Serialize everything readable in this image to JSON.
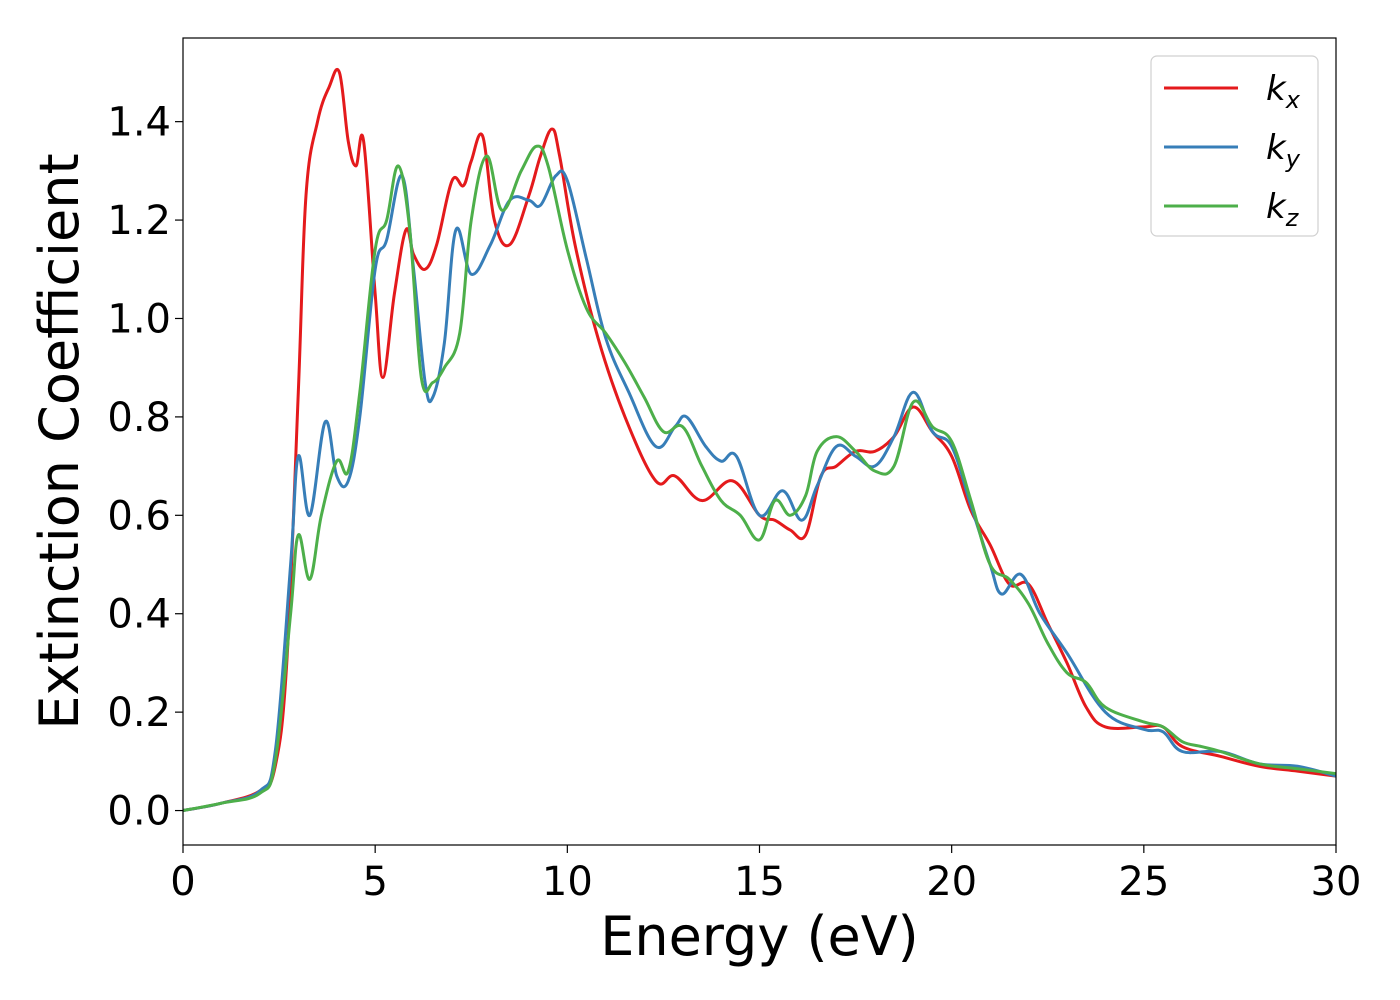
{
  "chart_data": {
    "type": "line",
    "title": "",
    "xlabel": "Energy (eV)",
    "ylabel": "Extinction Coefficient",
    "xlim": [
      0,
      30
    ],
    "ylim": [
      -0.07,
      1.57
    ],
    "xticks": [
      0,
      5,
      10,
      15,
      20,
      25,
      30
    ],
    "xtick_labels": [
      "0",
      "5",
      "10",
      "15",
      "20",
      "25",
      "30"
    ],
    "yticks": [
      0.0,
      0.2,
      0.4,
      0.6,
      0.8,
      1.0,
      1.2,
      1.4
    ],
    "ytick_labels": [
      "0.0",
      "0.2",
      "0.4",
      "0.6",
      "0.8",
      "1.0",
      "1.2",
      "1.4"
    ],
    "grid": false,
    "legend_position": "top-right",
    "series": [
      {
        "name": "k",
        "subscript": "x",
        "color": "#e41a1c",
        "x": [
          0,
          1,
          2,
          2.4,
          2.7,
          3.0,
          3.2,
          3.5,
          3.8,
          4.07,
          4.3,
          4.5,
          4.7,
          5.0,
          5.2,
          5.5,
          5.8,
          6.0,
          6.3,
          6.6,
          7.0,
          7.3,
          7.5,
          7.8,
          8.1,
          8.5,
          9.0,
          9.3,
          9.6,
          9.8,
          10.2,
          10.8,
          11.5,
          12.3,
          12.8,
          13.5,
          14.3,
          15.0,
          15.4,
          15.8,
          16.2,
          16.6,
          17.0,
          17.5,
          18.0,
          18.5,
          19.0,
          19.5,
          20.0,
          20.5,
          21.0,
          21.5,
          22.0,
          22.5,
          23.0,
          23.5,
          24.0,
          25.0,
          25.5,
          26.0,
          27.0,
          28.0,
          29.0,
          30.0
        ],
        "y": [
          0.0,
          0.015,
          0.04,
          0.09,
          0.3,
          0.85,
          1.25,
          1.4,
          1.47,
          1.5,
          1.36,
          1.31,
          1.36,
          1.05,
          0.88,
          1.05,
          1.18,
          1.13,
          1.1,
          1.15,
          1.28,
          1.27,
          1.32,
          1.37,
          1.2,
          1.15,
          1.25,
          1.33,
          1.385,
          1.33,
          1.15,
          0.96,
          0.8,
          0.67,
          0.68,
          0.63,
          0.67,
          0.6,
          0.59,
          0.57,
          0.56,
          0.68,
          0.7,
          0.73,
          0.73,
          0.76,
          0.82,
          0.77,
          0.72,
          0.61,
          0.54,
          0.46,
          0.46,
          0.38,
          0.3,
          0.21,
          0.17,
          0.17,
          0.17,
          0.13,
          0.11,
          0.09,
          0.08,
          0.07
        ]
      },
      {
        "name": "k",
        "subscript": "y",
        "color": "#377eb8",
        "x": [
          0,
          1,
          2,
          2.4,
          2.8,
          3.0,
          3.3,
          3.7,
          4.0,
          4.3,
          4.6,
          5.0,
          5.3,
          5.7,
          6.0,
          6.3,
          6.5,
          6.8,
          7.1,
          7.5,
          8.0,
          8.5,
          9.0,
          9.3,
          9.7,
          10.0,
          10.5,
          11.0,
          11.6,
          12.3,
          12.8,
          13.1,
          13.6,
          14.0,
          14.4,
          15.0,
          15.6,
          16.1,
          16.5,
          17.0,
          17.5,
          18.0,
          18.5,
          19.0,
          19.5,
          20.0,
          20.5,
          21.0,
          21.3,
          21.8,
          22.3,
          23.0,
          24.0,
          25.0,
          25.5,
          26.0,
          27.0,
          28.0,
          29.0,
          30.0
        ],
        "y": [
          0.0,
          0.015,
          0.04,
          0.12,
          0.5,
          0.72,
          0.6,
          0.79,
          0.68,
          0.67,
          0.8,
          1.1,
          1.16,
          1.29,
          1.1,
          0.87,
          0.84,
          0.95,
          1.18,
          1.09,
          1.15,
          1.24,
          1.24,
          1.23,
          1.29,
          1.28,
          1.12,
          0.96,
          0.85,
          0.74,
          0.78,
          0.8,
          0.74,
          0.71,
          0.72,
          0.6,
          0.65,
          0.59,
          0.66,
          0.74,
          0.72,
          0.7,
          0.76,
          0.85,
          0.77,
          0.74,
          0.62,
          0.5,
          0.44,
          0.48,
          0.4,
          0.32,
          0.2,
          0.165,
          0.16,
          0.12,
          0.12,
          0.095,
          0.09,
          0.07
        ]
      },
      {
        "name": "k",
        "subscript": "z",
        "color": "#4daf4a",
        "x": [
          0,
          1,
          2,
          2.4,
          2.8,
          3.0,
          3.3,
          3.6,
          4.0,
          4.3,
          4.6,
          5.0,
          5.3,
          5.6,
          5.9,
          6.2,
          6.5,
          6.8,
          7.2,
          7.5,
          7.9,
          8.3,
          8.8,
          9.2,
          9.5,
          10.0,
          10.5,
          11.0,
          11.5,
          12.0,
          12.5,
          13.0,
          13.5,
          14.0,
          14.5,
          15.0,
          15.4,
          15.8,
          16.2,
          16.5,
          17.0,
          17.5,
          18.0,
          18.5,
          19.0,
          19.5,
          20.0,
          20.5,
          21.0,
          21.5,
          22.0,
          22.5,
          23.0,
          23.5,
          24.0,
          25.0,
          25.5,
          26.0,
          26.5,
          27.0,
          28.0,
          29.0,
          30.0
        ],
        "y": [
          0.0,
          0.015,
          0.035,
          0.1,
          0.4,
          0.56,
          0.47,
          0.6,
          0.71,
          0.69,
          0.85,
          1.14,
          1.2,
          1.31,
          1.18,
          0.88,
          0.87,
          0.9,
          0.97,
          1.2,
          1.33,
          1.22,
          1.3,
          1.35,
          1.31,
          1.14,
          1.02,
          0.97,
          0.91,
          0.84,
          0.77,
          0.78,
          0.7,
          0.63,
          0.6,
          0.55,
          0.63,
          0.6,
          0.64,
          0.73,
          0.76,
          0.73,
          0.69,
          0.7,
          0.83,
          0.78,
          0.75,
          0.63,
          0.5,
          0.47,
          0.42,
          0.34,
          0.28,
          0.26,
          0.21,
          0.18,
          0.17,
          0.14,
          0.13,
          0.12,
          0.095,
          0.085,
          0.075
        ]
      }
    ]
  }
}
